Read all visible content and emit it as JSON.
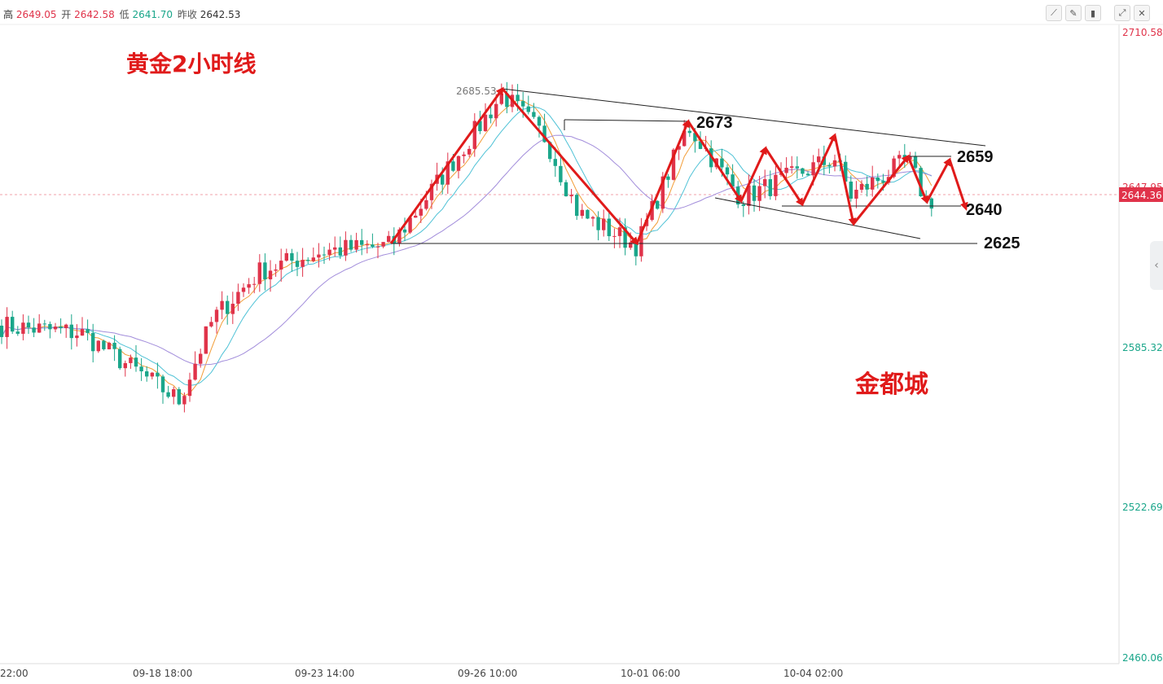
{
  "header": {
    "high_label": "高",
    "high": "2649.05",
    "open_label": "开",
    "open": "2642.58",
    "low_label": "低",
    "low": "2641.70",
    "prev_close_label": "昨收",
    "prev_close": "2642.53"
  },
  "toolbar": {
    "icons": [
      "line-chart-icon",
      "pencil-icon",
      "candles-icon",
      "expand-icon",
      "close-icon"
    ]
  },
  "colors": {
    "up": "#e0334a",
    "down": "#1aa68a",
    "ma_fast": "#f29d38",
    "ma_mid": "#4fc2d6",
    "ma_slow": "#a28ddb",
    "annotation": "#e01a1a",
    "trendline": "#222222"
  },
  "annotations": {
    "title": "黄金2小时线",
    "watermark": "金都城",
    "level_2673": "2673",
    "level_2659": "2659",
    "level_2640": "2640",
    "level_2625": "2625",
    "marked_high": "2685.53"
  },
  "chart_data": {
    "type": "candlestick",
    "title": "黄金2小时线",
    "y_axis": {
      "ticks": [
        "2710.58",
        "2647.95",
        "2585.32",
        "2522.69",
        "2460.06"
      ],
      "range": [
        2460.06,
        2710.58
      ],
      "side": "right"
    },
    "x_axis": {
      "ticks": [
        "22:00",
        "09-18 18:00",
        "09-23 14:00",
        "09-26 10:00",
        "10-01 06:00",
        "10-04 02:00"
      ]
    },
    "last_price": "2644.36",
    "overlays": [
      "MA-fast",
      "MA-mid",
      "MA-slow"
    ],
    "price_path": [
      [
        "09-17",
        2593
      ],
      [
        "09-18",
        2590
      ],
      [
        "09-18 18:00",
        2563
      ],
      [
        "09-19",
        2596
      ],
      [
        "09-20",
        2615
      ],
      [
        "09-23 14:00",
        2623
      ],
      [
        "09-24",
        2625
      ],
      [
        "09-26 10:00",
        2685.53
      ],
      [
        "09-27",
        2668
      ],
      [
        "09-30",
        2638
      ],
      [
        "10-01 06:00",
        2625
      ],
      [
        "10-02",
        2650
      ],
      [
        "10-02",
        2673
      ],
      [
        "10-03",
        2644
      ],
      [
        "10-04 02:00",
        2660
      ],
      [
        "10-04",
        2645
      ],
      [
        "10-07",
        2659
      ],
      [
        "10-08",
        2642
      ],
      [
        "10-08",
        2644.36
      ]
    ],
    "horizontal_levels": [
      2673,
      2659,
      2640,
      2625
    ]
  }
}
